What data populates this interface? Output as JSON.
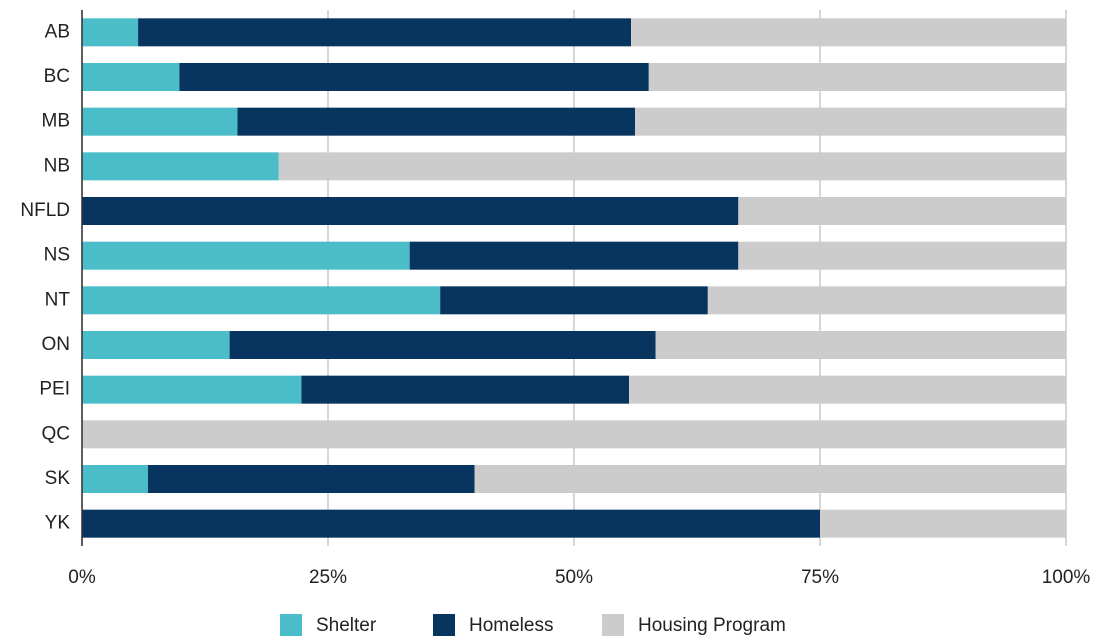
{
  "chart_data": {
    "type": "stacked-bar-horizontal",
    "categories": [
      "AB",
      "BC",
      "MB",
      "NB",
      "NFLD",
      "NS",
      "NT",
      "ON",
      "PEI",
      "QC",
      "SK",
      "YK"
    ],
    "series": [
      {
        "name": "Shelter",
        "color": "#4bbdc8",
        "values": [
          5.7,
          9.9,
          15.8,
          20.0,
          0,
          33.3,
          36.4,
          15.0,
          22.3,
          0,
          6.7,
          0
        ]
      },
      {
        "name": "Homeless",
        "color": "#08355f",
        "values": [
          50.1,
          47.7,
          40.4,
          0,
          66.7,
          33.4,
          27.2,
          43.3,
          33.3,
          0,
          33.2,
          75
        ]
      },
      {
        "name": "Housing Program",
        "color": "#cccccc",
        "values": [
          44.2,
          42.4,
          43.8,
          80.0,
          33.3,
          33.3,
          36.4,
          41.7,
          44.4,
          100,
          60.1,
          25
        ]
      }
    ],
    "xlim": [
      0,
      100
    ],
    "xticks": [
      {
        "value": 0,
        "label": "0%"
      },
      {
        "value": 25,
        "label": "25%"
      },
      {
        "value": 50,
        "label": "50%"
      },
      {
        "value": 75,
        "label": "75%"
      },
      {
        "value": 100,
        "label": "100%"
      }
    ],
    "grid": true,
    "legend": "bottom"
  }
}
